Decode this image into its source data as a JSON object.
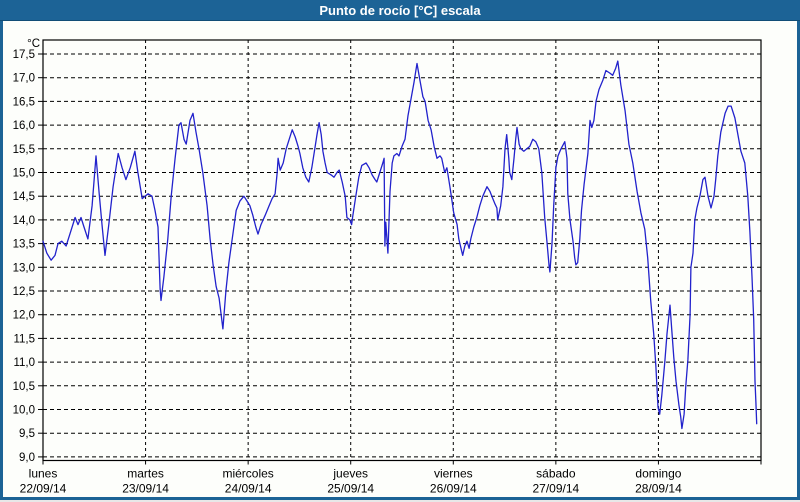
{
  "window": {
    "title": "Punto de rocío [°C] escala"
  },
  "chart": {
    "y_axis": {
      "unit": "°C",
      "min": 9.0,
      "max": 17.5,
      "step": 0.5,
      "decimal_separator": ","
    },
    "x_axis": {
      "days": [
        {
          "name": "lunes",
          "date": "22/09/14"
        },
        {
          "name": "martes",
          "date": "23/09/14"
        },
        {
          "name": "miércoles",
          "date": "24/09/14"
        },
        {
          "name": "jueves",
          "date": "25/09/14"
        },
        {
          "name": "viernes",
          "date": "26/09/14"
        },
        {
          "name": "sábado",
          "date": "27/09/14"
        },
        {
          "name": "domingo",
          "date": "28/09/14"
        }
      ]
    },
    "colors": {
      "frame": "#1C6396",
      "title_text": "#FFFFFF",
      "plot_background": "#FDFEFB",
      "grid": "#000000",
      "line": "#2222CC"
    }
  },
  "chart_data": {
    "type": "line",
    "title": "Punto de rocío [°C] escala",
    "ylabel": "°C",
    "ylim": [
      9.0,
      17.5
    ],
    "x_unit": "hours since lunes 22/09/14 00:00",
    "xlim": [
      0,
      168
    ],
    "grid": true,
    "legend": false,
    "series": [
      {
        "name": "Punto de rocío [°C]",
        "points": [
          [
            0.0,
            13.55
          ],
          [
            0.9,
            13.3
          ],
          [
            1.9,
            13.15
          ],
          [
            2.8,
            13.25
          ],
          [
            3.5,
            13.5
          ],
          [
            4.4,
            13.55
          ],
          [
            5.4,
            13.45
          ],
          [
            6.3,
            13.7
          ],
          [
            7.5,
            14.05
          ],
          [
            8.2,
            13.9
          ],
          [
            8.9,
            14.05
          ],
          [
            9.6,
            13.85
          ],
          [
            10.5,
            13.6
          ],
          [
            11.5,
            14.3
          ],
          [
            12.4,
            15.35
          ],
          [
            13.1,
            14.6
          ],
          [
            13.8,
            13.9
          ],
          [
            14.5,
            13.25
          ],
          [
            15.4,
            13.9
          ],
          [
            16.4,
            14.7
          ],
          [
            17.6,
            15.4
          ],
          [
            18.5,
            15.1
          ],
          [
            19.4,
            14.85
          ],
          [
            20.4,
            15.1
          ],
          [
            21.5,
            15.45
          ],
          [
            22.2,
            15.0
          ],
          [
            23.2,
            14.45
          ],
          [
            23.9,
            14.5
          ],
          [
            24.6,
            14.55
          ],
          [
            25.5,
            14.5
          ],
          [
            26.2,
            14.2
          ],
          [
            26.9,
            13.85
          ],
          [
            27.4,
            12.55
          ],
          [
            27.6,
            12.3
          ],
          [
            28.3,
            12.8
          ],
          [
            29.2,
            13.6
          ],
          [
            30.0,
            14.5
          ],
          [
            30.9,
            15.3
          ],
          [
            31.8,
            16.0
          ],
          [
            32.3,
            16.05
          ],
          [
            33.0,
            15.7
          ],
          [
            33.5,
            15.6
          ],
          [
            34.4,
            16.1
          ],
          [
            35.1,
            16.25
          ],
          [
            35.8,
            15.85
          ],
          [
            36.5,
            15.5
          ],
          [
            37.4,
            15.0
          ],
          [
            38.4,
            14.3
          ],
          [
            39.1,
            13.6
          ],
          [
            39.8,
            13.05
          ],
          [
            40.5,
            12.6
          ],
          [
            41.2,
            12.35
          ],
          [
            42.1,
            11.7
          ],
          [
            42.8,
            12.5
          ],
          [
            43.5,
            13.1
          ],
          [
            44.5,
            13.75
          ],
          [
            45.2,
            14.2
          ],
          [
            46.1,
            14.4
          ],
          [
            47.0,
            14.5
          ],
          [
            47.7,
            14.4
          ],
          [
            48.4,
            14.3
          ],
          [
            49.1,
            14.1
          ],
          [
            49.8,
            13.85
          ],
          [
            50.3,
            13.7
          ],
          [
            51.0,
            13.9
          ],
          [
            52.0,
            14.1
          ],
          [
            52.9,
            14.3
          ],
          [
            53.6,
            14.45
          ],
          [
            54.3,
            14.55
          ],
          [
            54.8,
            15.0
          ],
          [
            55.0,
            15.3
          ],
          [
            55.5,
            15.05
          ],
          [
            56.2,
            15.2
          ],
          [
            56.9,
            15.5
          ],
          [
            57.6,
            15.7
          ],
          [
            58.3,
            15.9
          ],
          [
            59.0,
            15.75
          ],
          [
            59.7,
            15.55
          ],
          [
            60.1,
            15.4
          ],
          [
            60.8,
            15.1
          ],
          [
            61.5,
            14.9
          ],
          [
            62.2,
            14.8
          ],
          [
            62.9,
            15.1
          ],
          [
            63.6,
            15.5
          ],
          [
            64.1,
            15.8
          ],
          [
            64.6,
            16.05
          ],
          [
            65.1,
            15.8
          ],
          [
            65.5,
            15.45
          ],
          [
            66.0,
            15.2
          ],
          [
            66.5,
            15.0
          ],
          [
            67.4,
            14.95
          ],
          [
            68.1,
            14.9
          ],
          [
            68.8,
            15.0
          ],
          [
            69.3,
            15.05
          ],
          [
            70.0,
            14.8
          ],
          [
            70.7,
            14.5
          ],
          [
            71.1,
            14.05
          ],
          [
            71.8,
            14.0
          ],
          [
            72.2,
            13.9
          ],
          [
            72.5,
            14.1
          ],
          [
            73.2,
            14.5
          ],
          [
            73.9,
            14.9
          ],
          [
            74.6,
            15.15
          ],
          [
            75.6,
            15.2
          ],
          [
            76.3,
            15.1
          ],
          [
            77.0,
            14.95
          ],
          [
            77.7,
            14.85
          ],
          [
            78.1,
            14.8
          ],
          [
            78.8,
            15.0
          ],
          [
            79.5,
            15.2
          ],
          [
            79.8,
            15.3
          ],
          [
            80.0,
            13.45
          ],
          [
            80.2,
            13.95
          ],
          [
            80.7,
            13.3
          ],
          [
            81.2,
            14.6
          ],
          [
            81.7,
            15.2
          ],
          [
            82.1,
            15.35
          ],
          [
            82.8,
            15.4
          ],
          [
            83.3,
            15.35
          ],
          [
            84.0,
            15.55
          ],
          [
            84.7,
            15.7
          ],
          [
            85.4,
            16.2
          ],
          [
            86.1,
            16.55
          ],
          [
            86.8,
            16.9
          ],
          [
            87.5,
            17.3
          ],
          [
            88.2,
            16.95
          ],
          [
            88.9,
            16.6
          ],
          [
            89.4,
            16.5
          ],
          [
            90.1,
            16.1
          ],
          [
            90.8,
            15.9
          ],
          [
            91.5,
            15.55
          ],
          [
            92.2,
            15.3
          ],
          [
            92.9,
            15.35
          ],
          [
            93.3,
            15.3
          ],
          [
            94.0,
            15.0
          ],
          [
            94.5,
            15.1
          ],
          [
            95.2,
            14.7
          ],
          [
            95.7,
            14.4
          ],
          [
            96.1,
            14.15
          ],
          [
            96.9,
            13.9
          ],
          [
            97.3,
            13.6
          ],
          [
            97.8,
            13.4
          ],
          [
            98.2,
            13.25
          ],
          [
            98.7,
            13.45
          ],
          [
            99.2,
            13.55
          ],
          [
            99.7,
            13.4
          ],
          [
            100.1,
            13.6
          ],
          [
            100.8,
            13.85
          ],
          [
            101.5,
            14.05
          ],
          [
            102.2,
            14.3
          ],
          [
            102.9,
            14.5
          ],
          [
            103.9,
            14.7
          ],
          [
            104.6,
            14.6
          ],
          [
            105.0,
            14.5
          ],
          [
            105.7,
            14.35
          ],
          [
            106.2,
            14.25
          ],
          [
            106.4,
            14.0
          ],
          [
            107.1,
            14.3
          ],
          [
            107.6,
            14.7
          ],
          [
            108.1,
            15.5
          ],
          [
            108.5,
            15.8
          ],
          [
            109.0,
            15.3
          ],
          [
            109.2,
            15.0
          ],
          [
            109.7,
            14.85
          ],
          [
            110.2,
            15.3
          ],
          [
            110.6,
            15.7
          ],
          [
            110.9,
            15.95
          ],
          [
            111.4,
            15.6
          ],
          [
            111.8,
            15.5
          ],
          [
            112.5,
            15.45
          ],
          [
            113.2,
            15.5
          ],
          [
            113.9,
            15.55
          ],
          [
            114.6,
            15.7
          ],
          [
            115.3,
            15.65
          ],
          [
            116.0,
            15.5
          ],
          [
            116.7,
            15.0
          ],
          [
            117.4,
            14.05
          ],
          [
            117.9,
            13.55
          ],
          [
            118.4,
            13.05
          ],
          [
            118.6,
            12.9
          ],
          [
            119.1,
            13.5
          ],
          [
            119.5,
            14.3
          ],
          [
            120.0,
            15.1
          ],
          [
            120.5,
            15.35
          ],
          [
            121.2,
            15.5
          ],
          [
            122.1,
            15.65
          ],
          [
            122.6,
            15.3
          ],
          [
            122.8,
            14.55
          ],
          [
            123.3,
            14.0
          ],
          [
            124.0,
            13.55
          ],
          [
            124.4,
            13.2
          ],
          [
            124.7,
            13.05
          ],
          [
            125.1,
            13.1
          ],
          [
            125.6,
            13.6
          ],
          [
            126.0,
            14.2
          ],
          [
            126.6,
            14.75
          ],
          [
            127.5,
            15.4
          ],
          [
            128.0,
            16.1
          ],
          [
            128.4,
            15.95
          ],
          [
            128.9,
            16.1
          ],
          [
            129.4,
            16.5
          ],
          [
            130.1,
            16.75
          ],
          [
            131.0,
            16.95
          ],
          [
            131.7,
            17.15
          ],
          [
            132.6,
            17.1
          ],
          [
            133.3,
            17.05
          ],
          [
            134.0,
            17.2
          ],
          [
            134.5,
            17.35
          ],
          [
            135.2,
            16.85
          ],
          [
            136.2,
            16.3
          ],
          [
            137.1,
            15.6
          ],
          [
            138.0,
            15.2
          ],
          [
            139.0,
            14.6
          ],
          [
            139.9,
            14.15
          ],
          [
            140.8,
            13.8
          ],
          [
            141.5,
            13.2
          ],
          [
            142.2,
            12.3
          ],
          [
            142.9,
            11.6
          ],
          [
            143.4,
            10.9
          ],
          [
            143.9,
            10.05
          ],
          [
            144.3,
            9.9
          ],
          [
            144.8,
            10.3
          ],
          [
            145.5,
            11.0
          ],
          [
            146.0,
            11.6
          ],
          [
            146.7,
            12.2
          ],
          [
            147.1,
            11.7
          ],
          [
            147.6,
            11.1
          ],
          [
            148.1,
            10.6
          ],
          [
            148.8,
            10.1
          ],
          [
            149.2,
            9.85
          ],
          [
            149.5,
            9.6
          ],
          [
            150.0,
            9.9
          ],
          [
            150.4,
            10.5
          ],
          [
            150.9,
            11.05
          ],
          [
            151.4,
            12.0
          ],
          [
            151.6,
            13.0
          ],
          [
            152.1,
            13.3
          ],
          [
            152.5,
            14.0
          ],
          [
            153.0,
            14.25
          ],
          [
            153.7,
            14.5
          ],
          [
            154.4,
            14.85
          ],
          [
            154.9,
            14.9
          ],
          [
            155.6,
            14.5
          ],
          [
            156.3,
            14.25
          ],
          [
            157.0,
            14.5
          ],
          [
            157.4,
            14.85
          ],
          [
            157.9,
            15.35
          ],
          [
            158.6,
            15.85
          ],
          [
            159.6,
            16.25
          ],
          [
            160.3,
            16.4
          ],
          [
            161.0,
            16.4
          ],
          [
            161.9,
            16.15
          ],
          [
            162.6,
            15.8
          ],
          [
            163.3,
            15.45
          ],
          [
            164.2,
            15.2
          ],
          [
            164.9,
            14.5
          ],
          [
            165.4,
            13.75
          ],
          [
            165.9,
            12.8
          ],
          [
            166.3,
            11.9
          ],
          [
            166.6,
            10.6
          ],
          [
            166.8,
            10.15
          ],
          [
            167.0,
            9.7
          ]
        ]
      }
    ]
  }
}
